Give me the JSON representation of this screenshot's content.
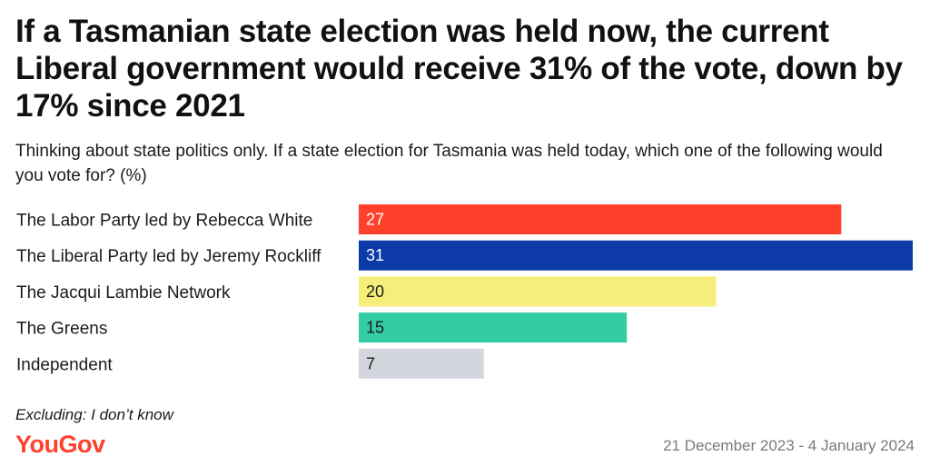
{
  "title": "If a Tasmanian state election was held now, the current Liberal government would receive 31% of the vote, down by 17% since 2021",
  "subtitle": "Thinking about state politics only. If a state election for Tasmania was held today, which one of the following would you vote for? (%)",
  "note": "Excluding: I don’t know",
  "brand": "YouGov",
  "date_range": "21 December 2023 - 4 January 2024",
  "colors": {
    "brand": "#ff412c"
  },
  "chart_data": {
    "type": "bar",
    "orientation": "horizontal",
    "categories": [
      "The Labor Party led by Rebecca White",
      "The Liberal Party led by Jeremy Rockliff",
      "The Jacqui Lambie Network",
      "The Greens",
      "Independent"
    ],
    "values": [
      27,
      31,
      20,
      15,
      7
    ],
    "colors": [
      "#ff412c",
      "#0c3ba8",
      "#f5ee7b",
      "#33cca4",
      "#d4d6de"
    ],
    "label_colors": [
      "#ffffff",
      "#ffffff",
      "#1a1a1a",
      "#1a1a1a",
      "#1a1a1a"
    ],
    "xlim": [
      0,
      31
    ],
    "unit": "%"
  }
}
